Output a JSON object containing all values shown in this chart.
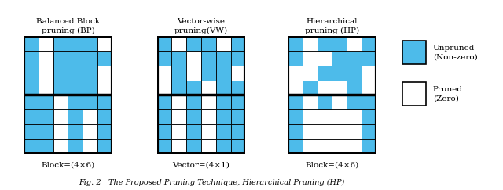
{
  "title1": "Balanced Block\npruning (BP)",
  "title2": "Vector-wise\npruning(VW)",
  "title3": "Hierarchical\npruning (HP)",
  "label1": "Block=(4×6)",
  "label2": "Vector=(4×1)",
  "label3": "Block=(4×6)",
  "fig_caption": "Fig. 2   The Proposed Pruning Technique, Hierarchical Pruning (HP)",
  "cyan": "#4DBBEA",
  "white": "#FFFFFF",
  "black": "#000000",
  "bp_grid": [
    [
      1,
      0,
      1,
      1,
      1,
      0
    ],
    [
      1,
      0,
      1,
      1,
      1,
      1
    ],
    [
      1,
      0,
      1,
      1,
      1,
      0
    ],
    [
      1,
      0,
      1,
      1,
      1,
      0
    ],
    [
      1,
      1,
      0,
      1,
      1,
      1
    ],
    [
      1,
      1,
      0,
      1,
      0,
      1
    ],
    [
      1,
      1,
      0,
      1,
      0,
      1
    ],
    [
      1,
      1,
      0,
      1,
      0,
      1
    ]
  ],
  "vw_grid": [
    [
      1,
      0,
      1,
      1,
      0,
      1
    ],
    [
      1,
      1,
      0,
      1,
      1,
      1
    ],
    [
      0,
      1,
      0,
      1,
      1,
      0
    ],
    [
      0,
      1,
      1,
      0,
      1,
      1
    ],
    [
      1,
      0,
      1,
      0,
      1,
      1
    ],
    [
      1,
      0,
      1,
      0,
      1,
      1
    ],
    [
      1,
      0,
      1,
      0,
      1,
      1
    ],
    [
      1,
      0,
      1,
      0,
      1,
      1
    ]
  ],
  "hp_grid": [
    [
      1,
      0,
      1,
      1,
      0,
      1
    ],
    [
      1,
      0,
      0,
      1,
      1,
      1
    ],
    [
      0,
      0,
      1,
      1,
      1,
      0
    ],
    [
      0,
      1,
      0,
      0,
      1,
      0
    ],
    [
      1,
      0,
      1,
      0,
      1,
      1
    ],
    [
      1,
      0,
      0,
      0,
      0,
      1
    ],
    [
      1,
      0,
      0,
      0,
      0,
      1
    ],
    [
      1,
      0,
      0,
      0,
      0,
      1
    ]
  ],
  "legend_cyan_label": "Unpruned\n(Non-zero)",
  "legend_white_label": "Pruned\n(Zero)"
}
